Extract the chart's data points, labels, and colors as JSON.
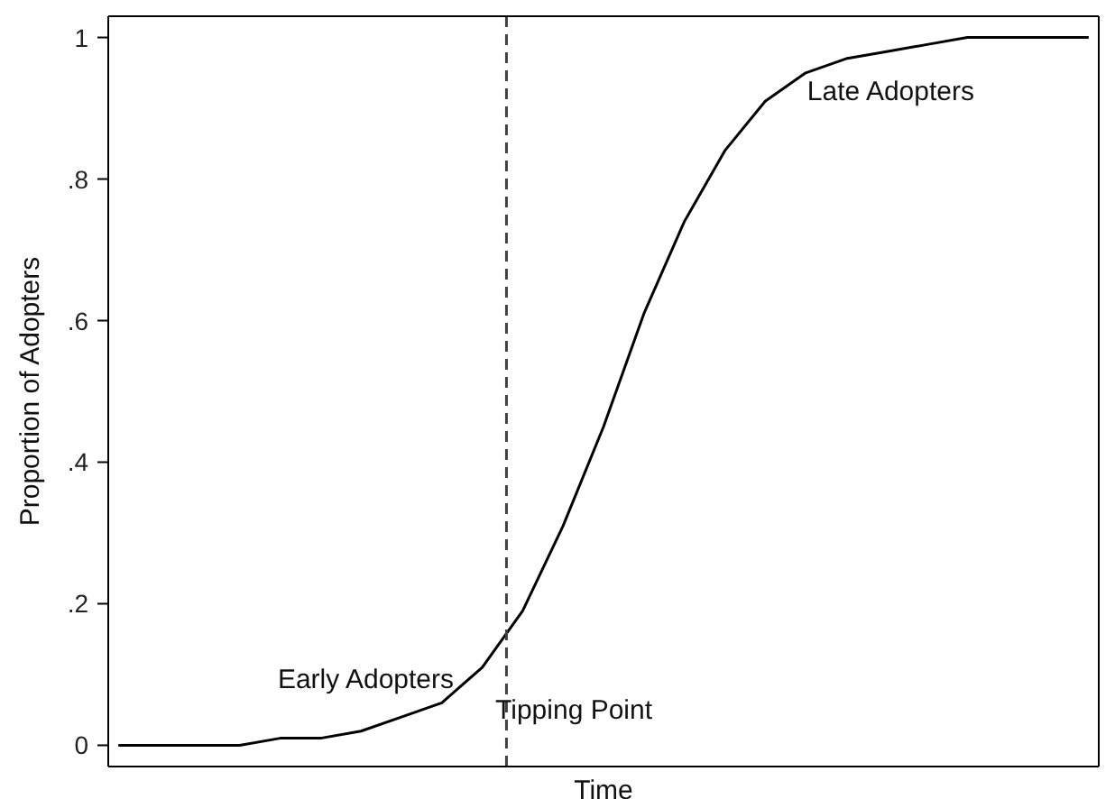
{
  "chart_data": {
    "type": "line",
    "xlabel": "Time",
    "ylabel": "Proportion of Adopters",
    "categories": [
      null,
      null,
      null,
      null,
      null,
      null,
      null,
      null,
      null,
      null,
      null,
      null,
      null,
      null,
      null,
      null,
      null,
      null,
      null,
      null,
      null,
      null,
      null,
      null,
      null
    ],
    "series": [
      {
        "color": "#000000",
        "values": [
          0,
          0,
          0,
          0,
          0.01,
          0.01,
          0.02,
          0.04,
          0.06,
          0.11,
          0.19,
          0.31,
          0.45,
          0.61,
          0.74,
          0.84,
          0.91,
          0.95,
          0.97,
          0.98,
          0.99,
          1,
          1,
          1,
          1
        ]
      }
    ],
    "ylim": [
      -0.03,
      1.03
    ],
    "yticks": [
      {
        "value": 0,
        "label": "0"
      },
      {
        "value": 0.2,
        "label": ".2"
      },
      {
        "value": 0.4,
        "label": ".4"
      },
      {
        "value": 0.6,
        "label": ".6"
      },
      {
        "value": 0.8,
        "label": ".8"
      },
      {
        "value": 1,
        "label": "1"
      }
    ],
    "tick_labels": "y",
    "marker": "none",
    "line_style": "solid",
    "annotations": [
      "Early Adopters",
      "Tipping Point",
      "Late Adopters"
    ]
  }
}
